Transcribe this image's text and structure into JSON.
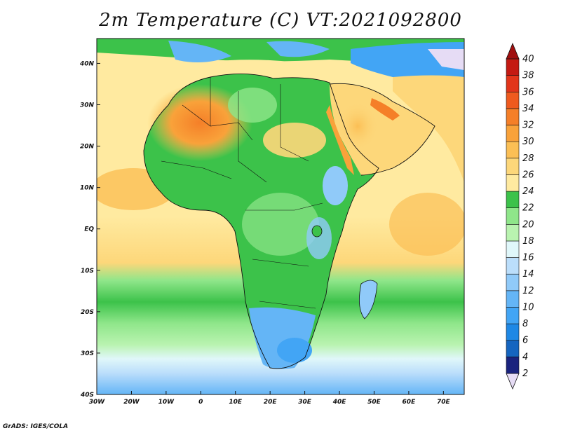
{
  "title": "2m Temperature (C) VT:2021092800",
  "credit": "GrADS: IGES/COLA",
  "map": {
    "lon_range": [
      -30,
      76
    ],
    "lat_range": [
      -40,
      46
    ],
    "lon_ticks": [
      {
        "value": -30,
        "label": "30W"
      },
      {
        "value": -20,
        "label": "20W"
      },
      {
        "value": -10,
        "label": "10W"
      },
      {
        "value": 0,
        "label": "0"
      },
      {
        "value": 10,
        "label": "10E"
      },
      {
        "value": 20,
        "label": "20E"
      },
      {
        "value": 30,
        "label": "30E"
      },
      {
        "value": 40,
        "label": "40E"
      },
      {
        "value": 50,
        "label": "50E"
      },
      {
        "value": 60,
        "label": "60E"
      },
      {
        "value": 70,
        "label": "70E"
      }
    ],
    "lat_ticks": [
      {
        "value": 40,
        "label": "40N"
      },
      {
        "value": 30,
        "label": "30N"
      },
      {
        "value": 20,
        "label": "20N"
      },
      {
        "value": 10,
        "label": "10N"
      },
      {
        "value": 0,
        "label": "EQ"
      },
      {
        "value": -10,
        "label": "10S"
      },
      {
        "value": -20,
        "label": "20S"
      },
      {
        "value": -30,
        "label": "30S"
      },
      {
        "value": -40,
        "label": "40S"
      }
    ]
  },
  "colorbar": {
    "labels": [
      "2",
      "4",
      "6",
      "8",
      "10",
      "12",
      "14",
      "16",
      "18",
      "20",
      "22",
      "24",
      "26",
      "28",
      "30",
      "32",
      "34",
      "36",
      "38",
      "40"
    ],
    "colors": [
      "#e6dcf5",
      "#1a237e",
      "#1565c0",
      "#1e88e5",
      "#42a5f5",
      "#64b5f6",
      "#90caf9",
      "#bbdefb",
      "#e0f7fa",
      "#b9f3b0",
      "#8fe68a",
      "#3cc24a",
      "#ffeaa0",
      "#fdd77a",
      "#fbbf55",
      "#f9a23a",
      "#f57f28",
      "#ef5a1e",
      "#e2351a",
      "#c41a12",
      "#a00f0f"
    ]
  }
}
